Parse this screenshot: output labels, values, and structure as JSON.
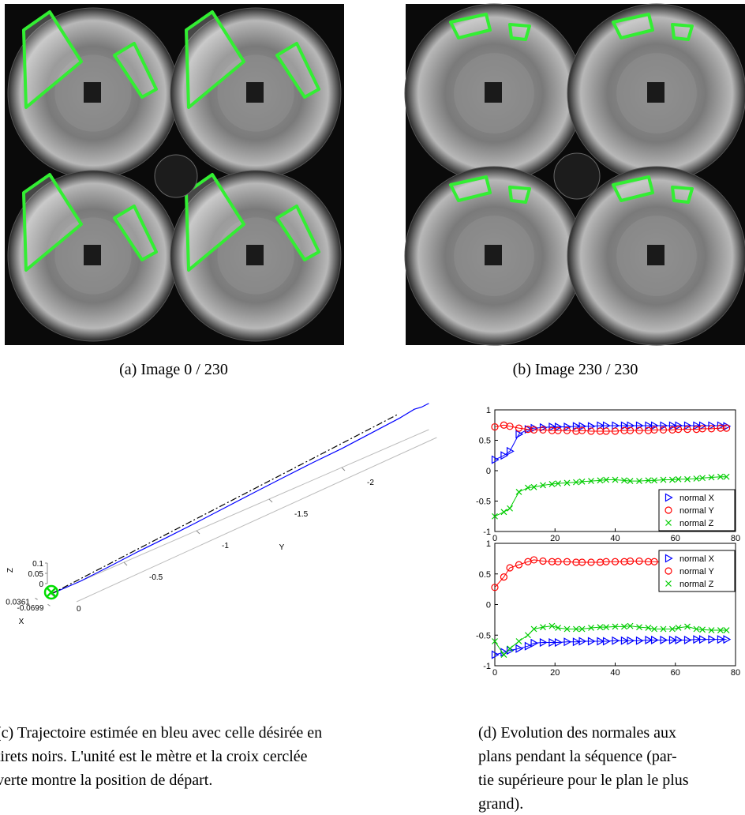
{
  "panels": [
    {
      "caption": "(a) Image 0 / 230"
    },
    {
      "caption": "(b) Image 230 / 230"
    }
  ],
  "chart_data": [
    {
      "type": "trajectory3d",
      "xlabel": "X",
      "ylabel": "Y",
      "zlabel": "Z",
      "xticks": [
        0.0361,
        -0.0699
      ],
      "yticks": [
        0,
        -0.5,
        -1,
        -1.5,
        -2
      ],
      "zticks": [
        0,
        0.05,
        0.1
      ],
      "start_color": "#00dd00",
      "axis_color": "#bbbbbb",
      "series": [
        {
          "color": "#0000ff",
          "y": [
            0,
            -0.2,
            -0.4,
            -0.6,
            -0.8,
            -1.0,
            -1.2,
            -1.4,
            -1.6,
            -1.8,
            -2.0,
            -2.2,
            -2.4,
            -2.5,
            -2.55,
            -2.6
          ],
          "z": [
            0,
            0.0,
            0.01,
            0.022,
            0.03,
            0.04,
            0.052,
            0.064,
            0.075,
            0.085,
            0.092,
            0.105,
            0.118,
            0.13,
            0.125,
            0.128
          ]
        },
        {
          "color": "#000000",
          "dash": "8 3 2 3",
          "y": [
            0,
            -2.39
          ],
          "z": [
            0,
            0.14
          ]
        }
      ]
    },
    {
      "type": "line",
      "x": [
        0,
        3,
        5,
        8,
        11,
        13,
        16,
        19,
        21,
        24,
        27,
        29,
        32,
        35,
        37,
        40,
        43,
        45,
        48,
        51,
        53,
        56,
        59,
        61,
        64,
        67,
        69,
        72,
        75,
        77
      ],
      "xlim": [
        0,
        80
      ],
      "ylim": [
        -1,
        1
      ],
      "xticks": [
        0,
        20,
        40,
        60,
        80
      ],
      "yticks": [
        -1,
        -0.5,
        0,
        0.5,
        1
      ],
      "legend": "lower right",
      "series": [
        {
          "name": "normal X",
          "color": "#0000ff",
          "marker": "triangle",
          "values": [
            0.18,
            0.25,
            0.32,
            0.6,
            0.68,
            0.7,
            0.71,
            0.72,
            0.72,
            0.72,
            0.73,
            0.73,
            0.73,
            0.74,
            0.74,
            0.74,
            0.74,
            0.74,
            0.74,
            0.74,
            0.74,
            0.74,
            0.74,
            0.74,
            0.74,
            0.74,
            0.74,
            0.74,
            0.74,
            0.73
          ]
        },
        {
          "name": "normal Y",
          "color": "#ff0000",
          "marker": "circle",
          "values": [
            0.72,
            0.75,
            0.73,
            0.7,
            0.68,
            0.67,
            0.67,
            0.66,
            0.66,
            0.66,
            0.65,
            0.66,
            0.65,
            0.65,
            0.65,
            0.65,
            0.66,
            0.66,
            0.66,
            0.66,
            0.67,
            0.67,
            0.67,
            0.68,
            0.68,
            0.68,
            0.69,
            0.69,
            0.7,
            0.7
          ]
        },
        {
          "name": "normal Z",
          "color": "#00cc00",
          "marker": "x",
          "values": [
            -0.75,
            -0.68,
            -0.62,
            -0.35,
            -0.28,
            -0.27,
            -0.24,
            -0.22,
            -0.21,
            -0.2,
            -0.19,
            -0.18,
            -0.17,
            -0.16,
            -0.15,
            -0.15,
            -0.16,
            -0.17,
            -0.17,
            -0.16,
            -0.16,
            -0.15,
            -0.15,
            -0.14,
            -0.14,
            -0.13,
            -0.12,
            -0.11,
            -0.1,
            -0.1
          ]
        }
      ]
    },
    {
      "type": "line",
      "x": [
        0,
        3,
        5,
        8,
        11,
        13,
        16,
        19,
        21,
        24,
        27,
        29,
        32,
        35,
        37,
        40,
        43,
        45,
        48,
        51,
        53,
        56,
        59,
        61,
        64,
        67,
        69,
        72,
        75,
        77
      ],
      "xlim": [
        0,
        80
      ],
      "ylim": [
        -1,
        1
      ],
      "xticks": [
        0,
        20,
        40,
        60,
        80
      ],
      "yticks": [
        -1,
        -0.5,
        0,
        0.5,
        1
      ],
      "legend": "upper right",
      "series": [
        {
          "name": "normal X",
          "color": "#0000ff",
          "marker": "triangle",
          "values": [
            -0.82,
            -0.78,
            -0.75,
            -0.72,
            -0.68,
            -0.63,
            -0.62,
            -0.62,
            -0.62,
            -0.61,
            -0.61,
            -0.6,
            -0.6,
            -0.6,
            -0.6,
            -0.59,
            -0.59,
            -0.59,
            -0.59,
            -0.58,
            -0.58,
            -0.58,
            -0.58,
            -0.58,
            -0.58,
            -0.57,
            -0.57,
            -0.57,
            -0.57,
            -0.57
          ]
        },
        {
          "name": "normal Y",
          "color": "#ff0000",
          "marker": "circle",
          "values": [
            0.28,
            0.45,
            0.6,
            0.65,
            0.7,
            0.73,
            0.71,
            0.7,
            0.7,
            0.7,
            0.69,
            0.69,
            0.69,
            0.69,
            0.7,
            0.7,
            0.7,
            0.71,
            0.71,
            0.7,
            0.7,
            0.69,
            0.69,
            0.68,
            0.68,
            0.67,
            0.66,
            0.65,
            0.64,
            0.65
          ]
        },
        {
          "name": "normal Z",
          "color": "#00cc00",
          "marker": "x",
          "values": [
            -0.6,
            -0.82,
            -0.72,
            -0.6,
            -0.5,
            -0.4,
            -0.37,
            -0.35,
            -0.38,
            -0.4,
            -0.4,
            -0.4,
            -0.38,
            -0.37,
            -0.37,
            -0.36,
            -0.36,
            -0.35,
            -0.37,
            -0.38,
            -0.4,
            -0.4,
            -0.4,
            -0.38,
            -0.36,
            -0.4,
            -0.41,
            -0.42,
            -0.42,
            -0.42
          ]
        }
      ]
    }
  ],
  "captions": {
    "c": [
      "(c) Trajectoire estimée en bleu avec celle désirée en",
      "tirets noirs. L'unité est le mètre et la croix cerclée",
      "verte montre la position de départ."
    ],
    "d": [
      "(d) Evolution des normales aux",
      "plans pendant la séquence (par-",
      "tie supérieure pour le plan le plus",
      "grand)."
    ]
  }
}
